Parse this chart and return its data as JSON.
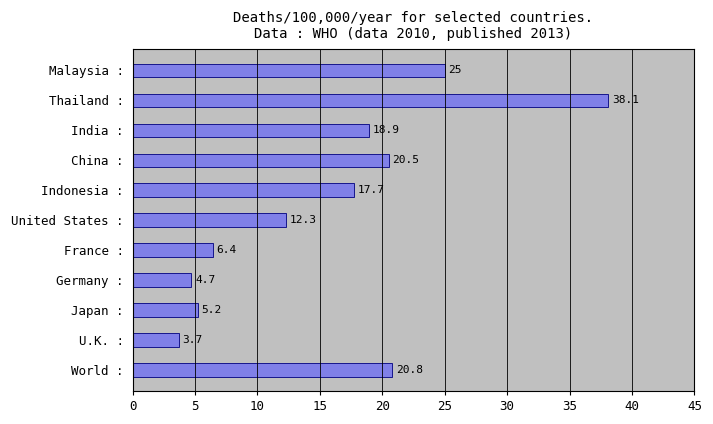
{
  "title_line1": "Deaths/100,000/year for selected countries.",
  "title_line2": "Data : WHO (data 2010, published 2013)",
  "categories": [
    "Malaysia",
    "Thailand",
    "India",
    "China",
    "Indonesia",
    "United States",
    "France",
    "Germany",
    "Japan",
    "U.K.",
    "World"
  ],
  "values": [
    25.0,
    38.1,
    18.9,
    20.5,
    17.7,
    12.3,
    6.4,
    4.7,
    5.2,
    3.7,
    20.8
  ],
  "value_labels": [
    "25",
    "38.1",
    "18.9",
    "20.5",
    "17.7",
    "12.3",
    "6.4",
    "4.7",
    "5.2",
    "3.7",
    "20.8"
  ],
  "bar_color": "#8080e8",
  "bar_edge_color": "#000080",
  "background_color": "#c0c0c0",
  "figure_background": "#ffffff",
  "plot_border_color": "#000000",
  "xlim": [
    0,
    45
  ],
  "xticks": [
    0,
    5,
    10,
    15,
    20,
    25,
    30,
    35,
    40,
    45
  ],
  "bar_height": 0.45,
  "label_fontsize": 9,
  "title_fontsize": 10,
  "tick_fontsize": 9,
  "value_fontsize": 8
}
